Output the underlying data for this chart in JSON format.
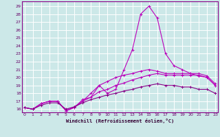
{
  "x": [
    0,
    1,
    2,
    3,
    4,
    5,
    6,
    7,
    8,
    9,
    10,
    11,
    12,
    13,
    14,
    15,
    16,
    17,
    18,
    19,
    20,
    21,
    22,
    23
  ],
  "line1": [
    16.2,
    16.0,
    16.7,
    17.0,
    17.0,
    15.8,
    16.2,
    17.2,
    17.5,
    19.0,
    18.0,
    18.5,
    21.0,
    23.5,
    28.0,
    29.0,
    27.5,
    23.0,
    21.5,
    21.0,
    20.5,
    20.2,
    20.0,
    19.0
  ],
  "line2": [
    16.2,
    16.0,
    16.7,
    17.0,
    17.0,
    15.8,
    16.3,
    17.0,
    18.0,
    19.0,
    19.5,
    20.0,
    20.3,
    20.5,
    20.8,
    21.0,
    20.8,
    20.5,
    20.5,
    20.5,
    20.5,
    20.5,
    20.2,
    19.2
  ],
  "line3": [
    16.2,
    16.0,
    16.7,
    17.0,
    17.0,
    15.8,
    16.2,
    17.0,
    17.5,
    18.2,
    18.5,
    19.0,
    19.3,
    19.7,
    20.0,
    20.3,
    20.5,
    20.3,
    20.3,
    20.3,
    20.3,
    20.3,
    20.0,
    19.0
  ],
  "line4": [
    16.2,
    16.0,
    16.5,
    16.8,
    16.8,
    16.0,
    16.3,
    16.8,
    17.2,
    17.5,
    17.8,
    18.0,
    18.3,
    18.5,
    18.8,
    19.0,
    19.2,
    19.0,
    19.0,
    18.8,
    18.8,
    18.5,
    18.5,
    18.0
  ],
  "line_color1": "#bb00bb",
  "line_color2": "#bb00bb",
  "line_color3": "#bb00bb",
  "line_color4": "#880088",
  "bg_color": "#cce8e8",
  "grid_color": "#ffffff",
  "xlabel": "Windchill (Refroidissement éolien,°C)",
  "ytick_labels": [
    "16",
    "17",
    "18",
    "19",
    "20",
    "21",
    "22",
    "23",
    "24",
    "25",
    "26",
    "27",
    "28",
    "29"
  ],
  "ytick_vals": [
    16,
    17,
    18,
    19,
    20,
    21,
    22,
    23,
    24,
    25,
    26,
    27,
    28,
    29
  ],
  "xtick_vals": [
    0,
    1,
    2,
    3,
    4,
    5,
    6,
    7,
    8,
    9,
    10,
    11,
    12,
    13,
    14,
    15,
    16,
    17,
    18,
    19,
    20,
    21,
    22,
    23
  ],
  "ylim": [
    15.6,
    29.6
  ],
  "xlim": [
    -0.3,
    23.3
  ]
}
